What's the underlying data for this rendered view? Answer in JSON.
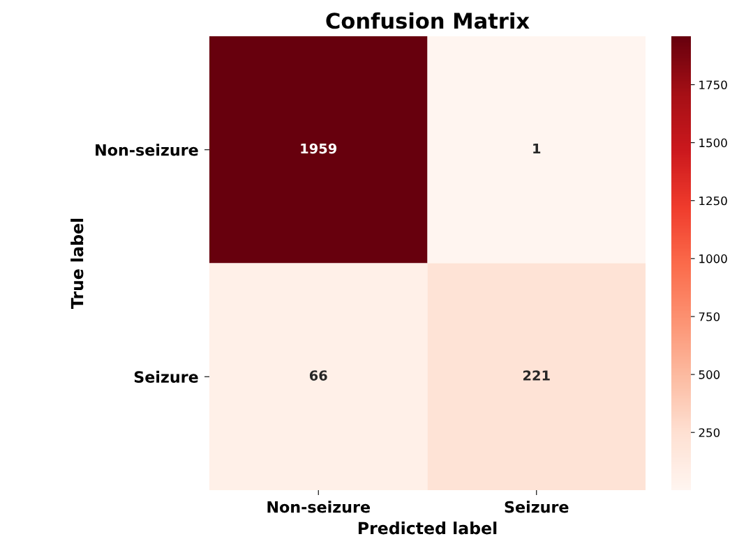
{
  "chart_data": {
    "type": "heatmap",
    "title": "Confusion Matrix",
    "xlabel": "Predicted label",
    "ylabel": "True label",
    "categories": [
      "Non-seizure",
      "Seizure"
    ],
    "y_categories": [
      "Non-seizure",
      "Seizure"
    ],
    "cells": [
      [
        1959,
        1
      ],
      [
        66,
        221
      ]
    ],
    "clim": [
      1,
      1959
    ],
    "cticks": [
      250,
      500,
      750,
      1000,
      1250,
      1500,
      1750
    ],
    "data_labels": true
  }
}
